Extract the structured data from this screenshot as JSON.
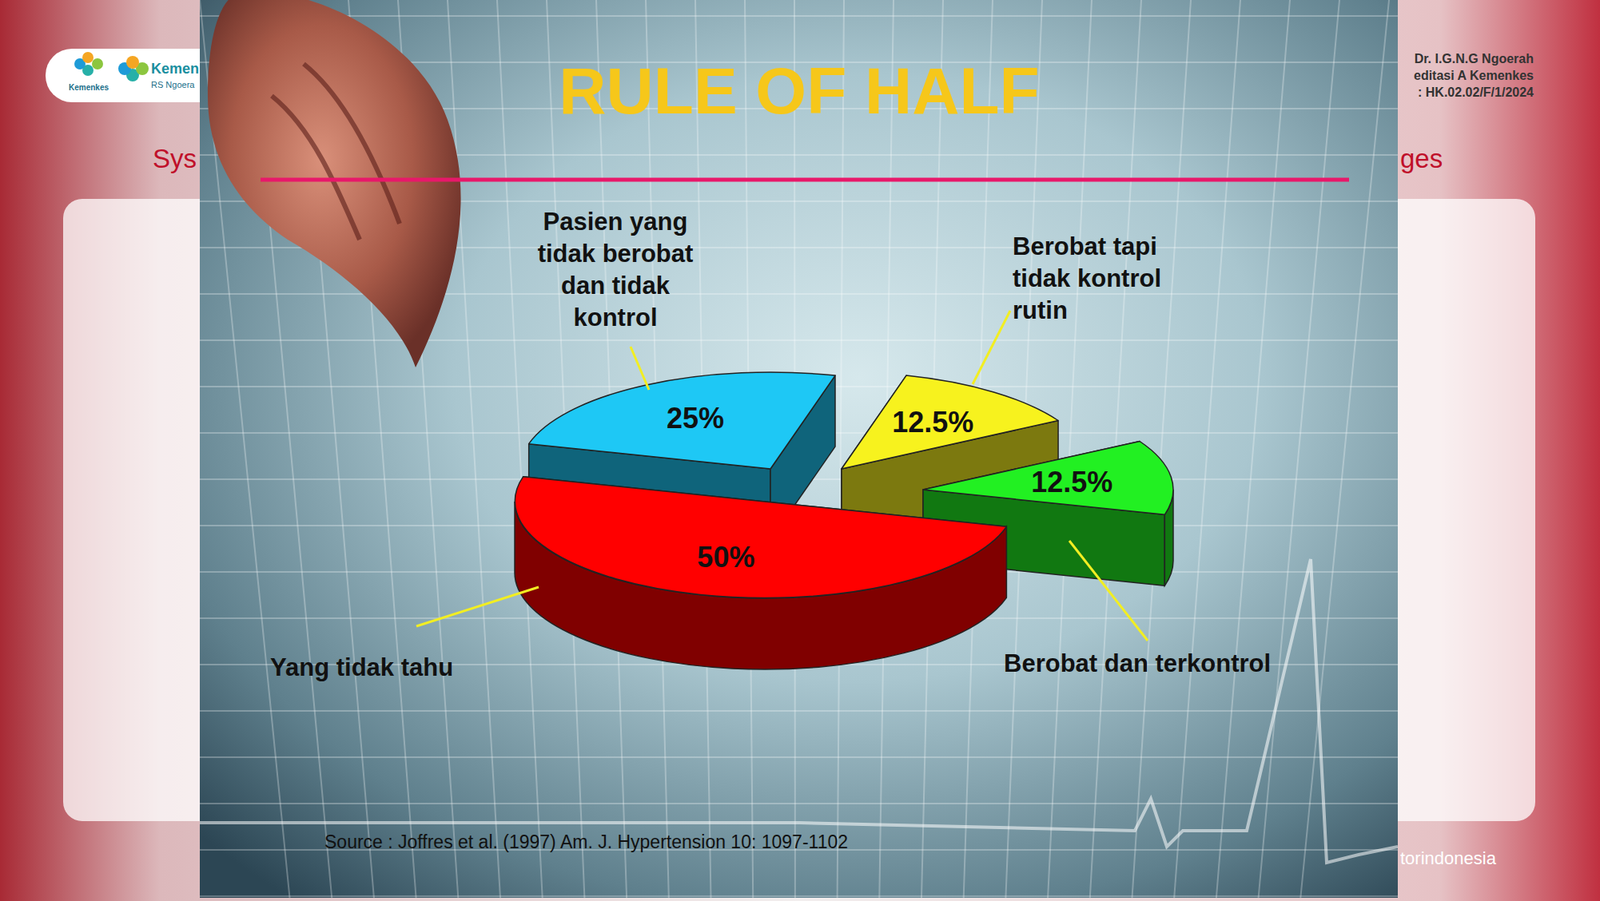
{
  "chart_data": {
    "type": "pie",
    "title": "RULE OF HALF",
    "categories": [
      "Pasien yang tidak berobat dan tidak kontrol",
      "Berobat tapi tidak kontrol rutin",
      "Berobat dan terkontrol",
      "Yang tidak tahu"
    ],
    "values": [
      25,
      12.5,
      12.5,
      50
    ],
    "value_labels": [
      "25%",
      "12.5%",
      "12.5%",
      "50%"
    ],
    "colors": [
      "#1ec8f5",
      "#f7f21e",
      "#22f022",
      "#ff0000"
    ],
    "data_labels": true,
    "source": "Source : Joffres et al. (1997) Am. J. Hypertension 10: 1097-1102"
  },
  "background": {
    "logo_caption": "Kemenkes",
    "logo_name": "Kemen",
    "logo_subname": "RS Ngoera",
    "heading_left": "Sys",
    "heading_right": "ges",
    "header_right": [
      "Dr. I.G.N.G Ngoerah",
      "editasi A Kemenkes",
      ": HK.02.02/F/1/2024"
    ],
    "footer_right": "torindonesia"
  }
}
